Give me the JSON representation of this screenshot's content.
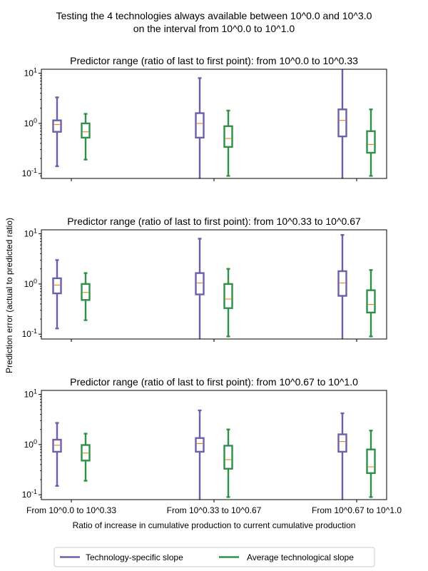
{
  "figure": {
    "suptitle_lines": [
      "Testing the 4 technologies always available between 10^0.0 and 10^3.0",
      "on the interval from 10^0.0 to 10^1.0"
    ],
    "ylabel": "Prediction error (actual to predicted ratio)",
    "xlabel": "Ratio of increase in cumulative production to current cumulative production",
    "legend": [
      {
        "label": "Technology-specific slope",
        "color": "#6e5fa8"
      },
      {
        "label": "Average technological slope",
        "color": "#2f9148"
      }
    ],
    "median_color": "#f08a1c"
  },
  "chart_data": {
    "type": "box",
    "y_scale": "log",
    "ylim": [
      0.08,
      12
    ],
    "y_ticks": [
      "10^-1",
      "10^0",
      "10^1"
    ],
    "categories": [
      "From 10^0.0 to 10^0.33",
      "From 10^0.33 to 10^0.67",
      "From 10^0.67 to 10^1.0"
    ],
    "panels": [
      {
        "title": "Predictor range (ratio of last to first point): from 10^0.0 to 10^0.33",
        "series": [
          {
            "name": "Technology-specific slope",
            "boxes": [
              {
                "whislo": 0.14,
                "q1": 0.68,
                "med": 0.95,
                "q3": 1.15,
                "whishi": 3.3
              },
              {
                "whislo": 0.05,
                "q1": 0.52,
                "med": 1.0,
                "q3": 1.6,
                "whishi": 8.0
              },
              {
                "whislo": 0.05,
                "q1": 0.55,
                "med": 1.15,
                "q3": 1.9,
                "whishi": 12.5
              }
            ]
          },
          {
            "name": "Average technological slope",
            "boxes": [
              {
                "whislo": 0.19,
                "q1": 0.52,
                "med": 0.68,
                "q3": 1.0,
                "whishi": 1.55
              },
              {
                "whislo": 0.09,
                "q1": 0.34,
                "med": 0.5,
                "q3": 0.88,
                "whishi": 1.8
              },
              {
                "whislo": 0.09,
                "q1": 0.26,
                "med": 0.38,
                "q3": 0.7,
                "whishi": 1.9
              }
            ]
          }
        ]
      },
      {
        "title": "Predictor range (ratio of last to first point): from 10^0.33 to 10^0.67",
        "series": [
          {
            "name": "Technology-specific slope",
            "boxes": [
              {
                "whislo": 0.13,
                "q1": 0.65,
                "med": 0.95,
                "q3": 1.3,
                "whishi": 3.0
              },
              {
                "whislo": 0.05,
                "q1": 0.62,
                "med": 1.05,
                "q3": 1.65,
                "whishi": 8.0
              },
              {
                "whislo": 0.05,
                "q1": 0.58,
                "med": 1.05,
                "q3": 1.8,
                "whishi": 9.5
              }
            ]
          },
          {
            "name": "Average technological slope",
            "boxes": [
              {
                "whislo": 0.19,
                "q1": 0.48,
                "med": 0.68,
                "q3": 1.0,
                "whishi": 1.65
              },
              {
                "whislo": 0.09,
                "q1": 0.33,
                "med": 0.5,
                "q3": 1.0,
                "whishi": 2.0
              },
              {
                "whislo": 0.09,
                "q1": 0.27,
                "med": 0.39,
                "q3": 0.75,
                "whishi": 1.9
              }
            ]
          }
        ]
      },
      {
        "title": "Predictor range (ratio of last to first point): from 10^0.67 to 10^1.0",
        "series": [
          {
            "name": "Technology-specific slope",
            "boxes": [
              {
                "whislo": 0.15,
                "q1": 0.72,
                "med": 0.97,
                "q3": 1.25,
                "whishi": 2.7
              },
              {
                "whislo": 0.05,
                "q1": 0.72,
                "med": 1.05,
                "q3": 1.35,
                "whishi": 4.8
              },
              {
                "whislo": 0.05,
                "q1": 0.72,
                "med": 1.15,
                "q3": 1.6,
                "whishi": 4.2
              }
            ]
          },
          {
            "name": "Average technological slope",
            "boxes": [
              {
                "whislo": 0.19,
                "q1": 0.48,
                "med": 0.68,
                "q3": 0.98,
                "whishi": 1.65
              },
              {
                "whislo": 0.09,
                "q1": 0.33,
                "med": 0.5,
                "q3": 0.95,
                "whishi": 2.0
              },
              {
                "whislo": 0.09,
                "q1": 0.27,
                "med": 0.36,
                "q3": 0.8,
                "whishi": 1.9
              }
            ]
          }
        ]
      }
    ]
  }
}
